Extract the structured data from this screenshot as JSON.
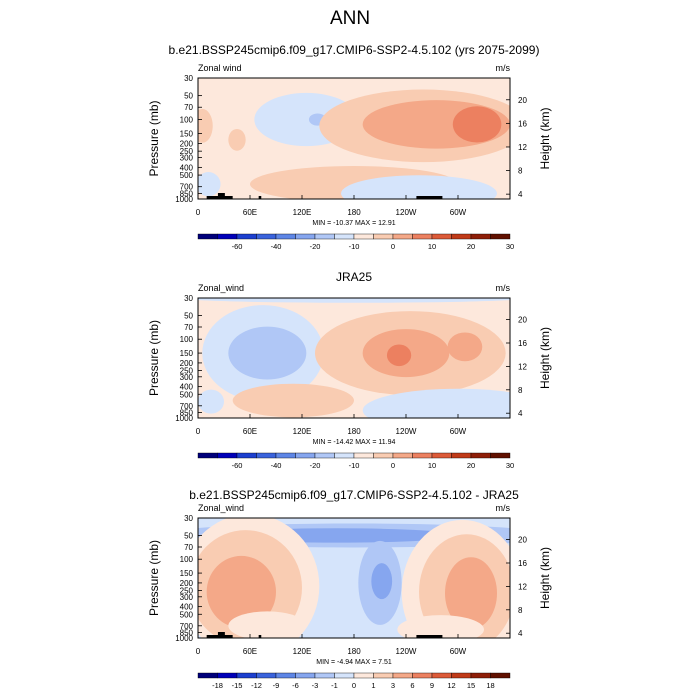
{
  "title": "ANN",
  "chart_data": [
    {
      "type": "heatmap",
      "title": "b.e21.BSSP245cmip6.f09_g17.CMIP6-SSP2-4.5.102 (yrs 2075-2099)",
      "left_label": "Zonal wind",
      "units": "m/s",
      "ylabel": "Pressure (mb)",
      "ylabel_right": "Height (km)",
      "x_ticks": [
        "0",
        "60E",
        "120E",
        "180",
        "120W",
        "60W"
      ],
      "y_ticks": [
        "30",
        "50",
        "70",
        "100",
        "150",
        "200",
        "250",
        "300",
        "400",
        "500",
        "700",
        "850",
        "1000"
      ],
      "height_ticks": [
        "20",
        "16",
        "12",
        "8",
        "4"
      ],
      "stats": "MIN = -10.37  MAX =  12.91",
      "colorbar": {
        "labels": [
          "-60",
          "-40",
          "-20",
          "-10",
          "0",
          "10",
          "20",
          "30"
        ],
        "colors": [
          "#00007a",
          "#0000b8",
          "#1c3fcf",
          "#3a63dc",
          "#5e86e6",
          "#86a6ef",
          "#b0c7f6",
          "#d5e4fb",
          "#fde8dc",
          "#f9ccb2",
          "#f4a888",
          "#ec8060",
          "#dc5a38",
          "#c03a18",
          "#8e1e08",
          "#601000"
        ]
      },
      "field": {
        "base": "#fde8dc",
        "blobs": [
          {
            "lon": 125,
            "p": 100,
            "w": 60,
            "h": 22,
            "c": "#d5e4fb"
          },
          {
            "lon": 138,
            "p": 100,
            "w": 10,
            "h": 5,
            "c": "#b0c7f6"
          },
          {
            "lon": 260,
            "p": 120,
            "w": 120,
            "h": 30,
            "c": "#f9ccb2"
          },
          {
            "lon": 275,
            "p": 115,
            "w": 85,
            "h": 20,
            "c": "#f4a888"
          },
          {
            "lon": 322,
            "p": 115,
            "w": 28,
            "h": 15,
            "c": "#ec8060"
          },
          {
            "lon": 5,
            "p": 120,
            "w": 12,
            "h": 14,
            "c": "#f9ccb2"
          },
          {
            "lon": 45,
            "p": 180,
            "w": 10,
            "h": 9,
            "c": "#f9ccb2"
          },
          {
            "lon": 180,
            "p": 650,
            "w": 120,
            "h": 15,
            "c": "#f9ccb2"
          },
          {
            "lon": 12,
            "p": 650,
            "w": 14,
            "h": 10,
            "c": "#d5e4fb"
          },
          {
            "lon": 255,
            "p": 850,
            "w": 90,
            "h": 15,
            "c": "#d5e4fb"
          }
        ]
      }
    },
    {
      "type": "heatmap",
      "title": "JRA25",
      "left_label": "Zonal_wind",
      "units": "m/s",
      "ylabel": "Pressure (mb)",
      "ylabel_right": "Height (km)",
      "x_ticks": [
        "0",
        "60E",
        "120E",
        "180",
        "120W",
        "60W"
      ],
      "y_ticks": [
        "30",
        "50",
        "70",
        "100",
        "150",
        "200",
        "250",
        "300",
        "400",
        "500",
        "700",
        "850",
        "1000"
      ],
      "height_ticks": [
        "20",
        "16",
        "12",
        "8",
        "4"
      ],
      "stats": "MIN = -14.42  MAX =  11.94",
      "colorbar": {
        "labels": [
          "-60",
          "-40",
          "-20",
          "-10",
          "0",
          "10",
          "20",
          "30"
        ],
        "colors": [
          "#00007a",
          "#0000b8",
          "#1c3fcf",
          "#3a63dc",
          "#5e86e6",
          "#86a6ef",
          "#b0c7f6",
          "#d5e4fb",
          "#fde8dc",
          "#f9ccb2",
          "#f4a888",
          "#ec8060",
          "#dc5a38",
          "#c03a18",
          "#8e1e08",
          "#601000"
        ]
      },
      "field": {
        "base": "#fde8dc",
        "blobs": [
          {
            "lon": 180,
            "p": 30,
            "w": 200,
            "h": 4,
            "c": "#d5e4fb"
          },
          {
            "lon": 75,
            "p": 150,
            "w": 70,
            "h": 40,
            "c": "#d5e4fb"
          },
          {
            "lon": 80,
            "p": 150,
            "w": 45,
            "h": 22,
            "c": "#b0c7f6"
          },
          {
            "lon": 245,
            "p": 150,
            "w": 110,
            "h": 35,
            "c": "#f9ccb2"
          },
          {
            "lon": 240,
            "p": 150,
            "w": 50,
            "h": 20,
            "c": "#f4a888"
          },
          {
            "lon": 232,
            "p": 160,
            "w": 14,
            "h": 9,
            "c": "#ec8060"
          },
          {
            "lon": 308,
            "p": 125,
            "w": 20,
            "h": 12,
            "c": "#f4a888"
          },
          {
            "lon": 110,
            "p": 600,
            "w": 70,
            "h": 14,
            "c": "#f9ccb2"
          },
          {
            "lon": 300,
            "p": 800,
            "w": 110,
            "h": 18,
            "c": "#d5e4fb"
          },
          {
            "lon": 15,
            "p": 620,
            "w": 15,
            "h": 10,
            "c": "#d5e4fb"
          }
        ]
      }
    },
    {
      "type": "heatmap",
      "title": "b.e21.BSSP245cmip6.f09_g17.CMIP6-SSP2-4.5.102 - JRA25",
      "left_label": "Zonal_wind",
      "units": "m/s",
      "ylabel": "Pressure (mb)",
      "ylabel_right": "Height (km)",
      "x_ticks": [
        "0",
        "60E",
        "120E",
        "180",
        "120W",
        "60W"
      ],
      "y_ticks": [
        "30",
        "50",
        "70",
        "100",
        "150",
        "200",
        "250",
        "300",
        "400",
        "500",
        "700",
        "850",
        "1000"
      ],
      "height_ticks": [
        "20",
        "16",
        "12",
        "8",
        "4"
      ],
      "stats": "MIN =  -4.94  MAX =   7.51",
      "colorbar": {
        "labels": [
          "-18",
          "-15",
          "-12",
          "-9",
          "-6",
          "-3",
          "-1",
          "0",
          "1",
          "3",
          "6",
          "9",
          "12",
          "15",
          "18"
        ],
        "colors": [
          "#00007a",
          "#0000b8",
          "#1c3fcf",
          "#3a63dc",
          "#5e86e6",
          "#86a6ef",
          "#b0c7f6",
          "#d5e4fb",
          "#fde8dc",
          "#f9ccb2",
          "#f4a888",
          "#ec8060",
          "#dc5a38",
          "#c03a18",
          "#8e1e08",
          "#601000"
        ]
      },
      "field": {
        "base": "#d5e4fb",
        "blobs": [
          {
            "lon": 180,
            "p": 50,
            "w": 230,
            "h": 10,
            "c": "#b0c7f6"
          },
          {
            "lon": 160,
            "p": 50,
            "w": 140,
            "h": 6,
            "c": "#86a6ef"
          },
          {
            "lon": 60,
            "p": 220,
            "w": 80,
            "h": 60,
            "c": "#fde8dc"
          },
          {
            "lon": 55,
            "p": 230,
            "w": 65,
            "h": 48,
            "c": "#f9ccb2"
          },
          {
            "lon": 50,
            "p": 260,
            "w": 40,
            "h": 30,
            "c": "#f4a888"
          },
          {
            "lon": 305,
            "p": 260,
            "w": 70,
            "h": 60,
            "c": "#fde8dc"
          },
          {
            "lon": 310,
            "p": 260,
            "w": 55,
            "h": 48,
            "c": "#f9ccb2"
          },
          {
            "lon": 315,
            "p": 270,
            "w": 30,
            "h": 30,
            "c": "#f4a888"
          },
          {
            "lon": 210,
            "p": 200,
            "w": 25,
            "h": 35,
            "c": "#b0c7f6"
          },
          {
            "lon": 212,
            "p": 190,
            "w": 12,
            "h": 15,
            "c": "#86a6ef"
          },
          {
            "lon": 80,
            "p": 700,
            "w": 45,
            "h": 12,
            "c": "#fde8dc"
          },
          {
            "lon": 280,
            "p": 780,
            "w": 50,
            "h": 12,
            "c": "#fde8dc"
          }
        ]
      }
    }
  ]
}
